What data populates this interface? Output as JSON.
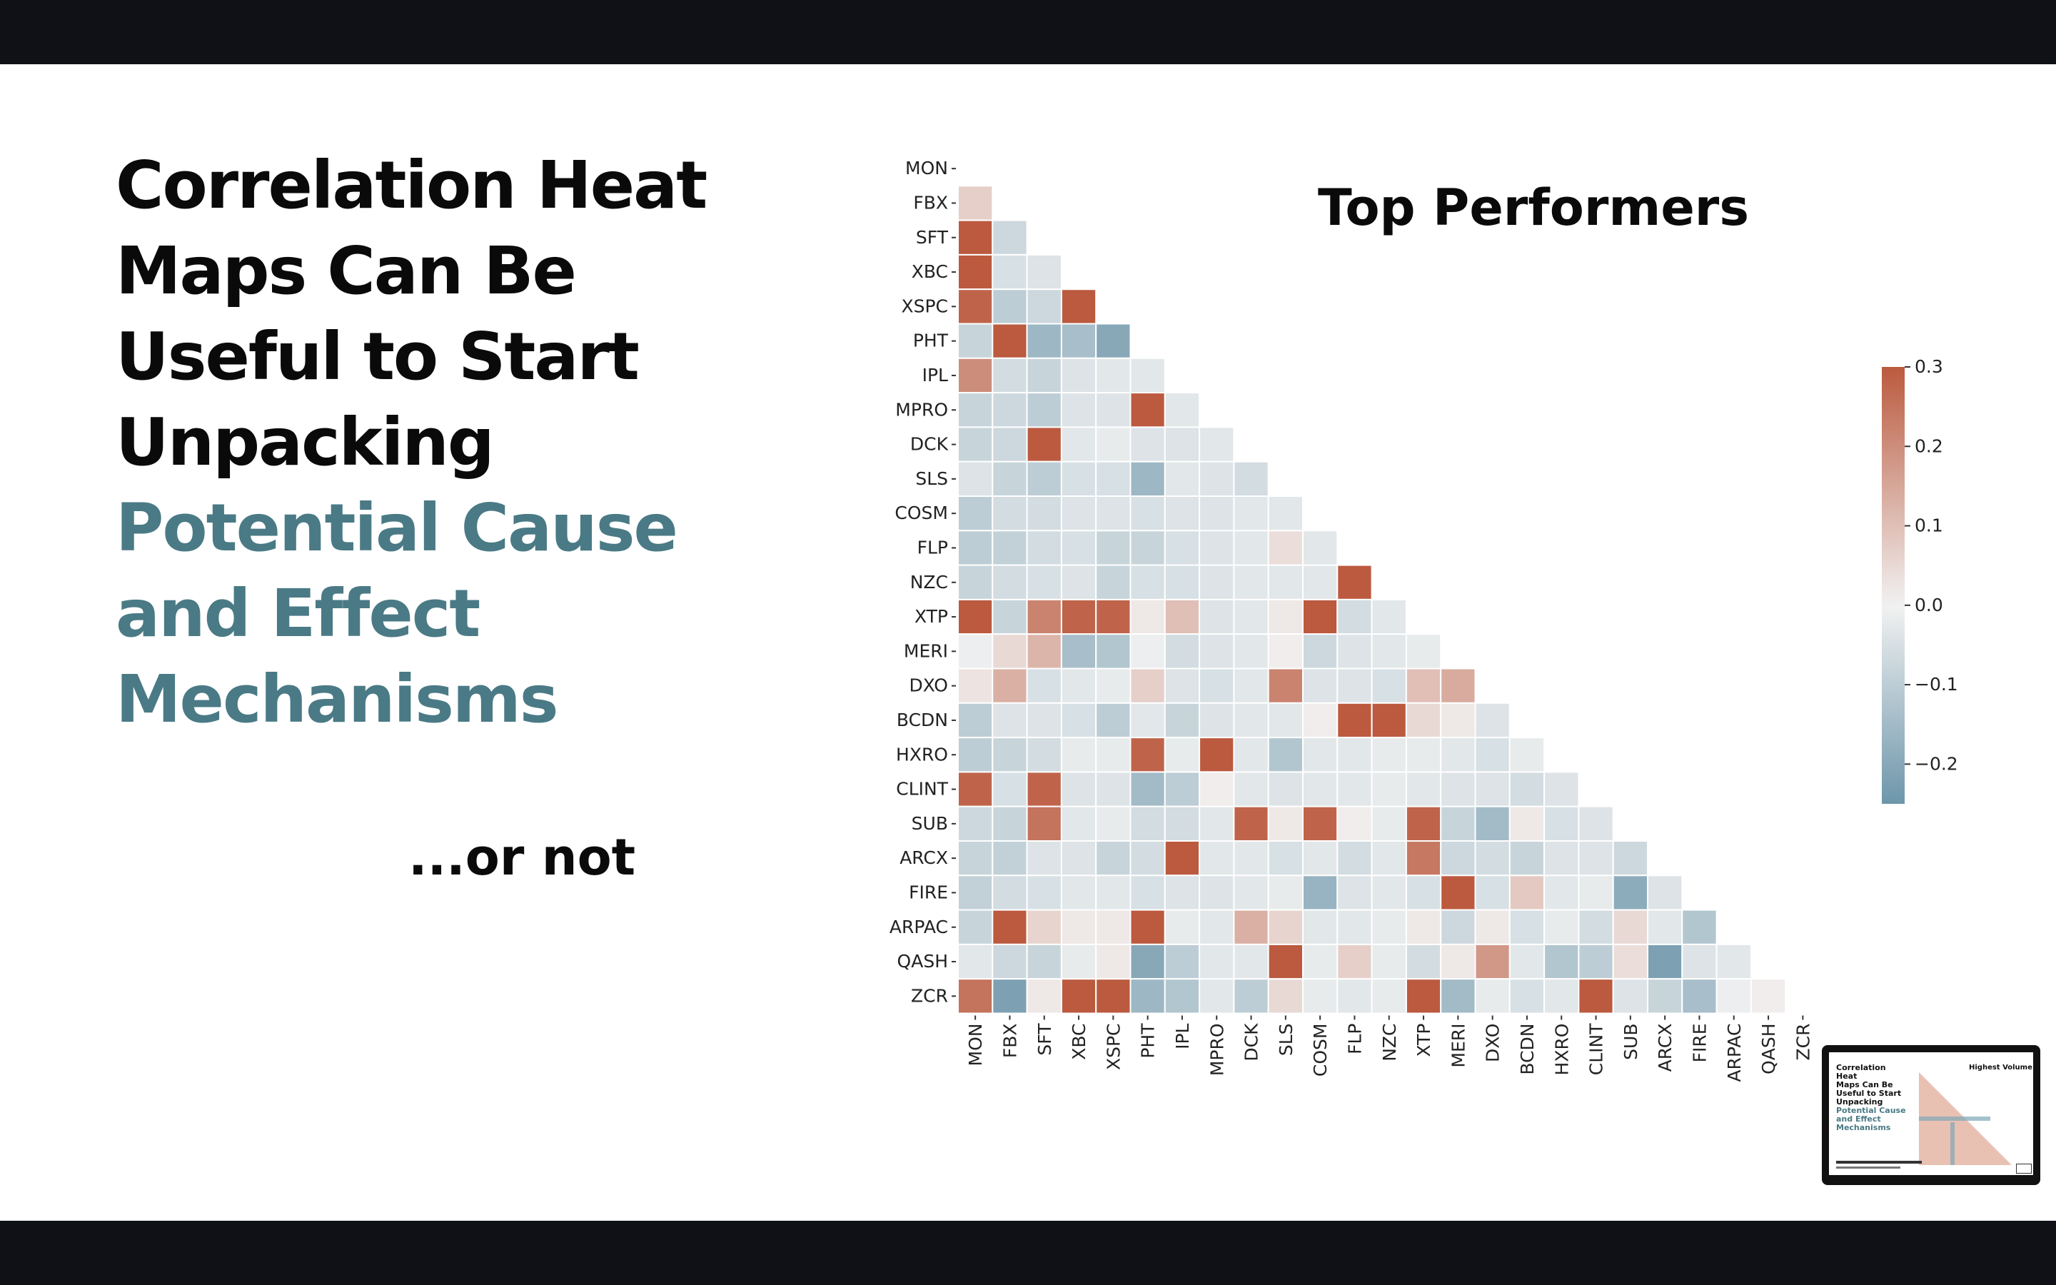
{
  "slide": {
    "heading_lines": [
      "Correlation Heat",
      "Maps Can Be",
      "Useful to Start",
      "Unpacking"
    ],
    "heading_accent_lines": [
      "Potential Cause",
      "and Effect",
      "Mechanisms"
    ],
    "subtext": "...or not",
    "colors": {
      "accent": "#4a7a85",
      "text": "#0a0a0a",
      "frame": "#0f1116"
    }
  },
  "chart_data": {
    "type": "heatmap",
    "title": "Top Performers",
    "labels": [
      "MON",
      "FBX",
      "SFT",
      "XBC",
      "XSPC",
      "PHT",
      "IPL",
      "MPRO",
      "DCK",
      "SLS",
      "COSM",
      "FLP",
      "NZC",
      "XTP",
      "MERI",
      "DXO",
      "BCDN",
      "HXRO",
      "CLINT",
      "SUB",
      "ARCX",
      "FIRE",
      "ARPAC",
      "QASH",
      "ZCR"
    ],
    "mask": "upper triangle incl. diagonal",
    "colorbar": {
      "min": -0.25,
      "max": 0.3,
      "ticks": [
        0.3,
        0.2,
        0.1,
        0.0,
        -0.1,
        -0.2
      ],
      "tick_labels": [
        "0.3",
        "0.2",
        "0.1",
        "0.0",
        "−0.1",
        "−0.2"
      ]
    },
    "colormap": {
      "low": "#6d96aa",
      "mid": "#f2f2f2",
      "high": "#bb5a3f"
    },
    "rows": [
      [],
      [
        0.07
      ],
      [
        0.3,
        -0.07
      ],
      [
        0.3,
        -0.05,
        -0.04
      ],
      [
        0.28,
        -0.1,
        -0.07,
        0.3
      ],
      [
        -0.08,
        0.3,
        -0.16,
        -0.14,
        -0.2
      ],
      [
        0.2,
        -0.06,
        -0.08,
        -0.04,
        -0.03,
        -0.03
      ],
      [
        -0.08,
        -0.07,
        -0.1,
        -0.04,
        -0.04,
        0.3,
        -0.03
      ],
      [
        -0.08,
        -0.07,
        0.3,
        -0.03,
        -0.02,
        -0.04,
        -0.04,
        -0.03
      ],
      [
        -0.04,
        -0.08,
        -0.1,
        -0.05,
        -0.05,
        -0.16,
        -0.03,
        -0.04,
        -0.06
      ],
      [
        -0.1,
        -0.06,
        -0.06,
        -0.04,
        -0.04,
        -0.05,
        -0.04,
        -0.04,
        -0.03,
        -0.03
      ],
      [
        -0.1,
        -0.09,
        -0.06,
        -0.05,
        -0.08,
        -0.08,
        -0.05,
        -0.04,
        -0.03,
        0.04,
        -0.03
      ],
      [
        -0.08,
        -0.06,
        -0.05,
        -0.04,
        -0.08,
        -0.05,
        -0.05,
        -0.04,
        -0.03,
        -0.03,
        -0.03,
        0.3
      ],
      [
        0.3,
        -0.08,
        0.22,
        0.28,
        0.28,
        0.02,
        0.1,
        -0.04,
        -0.03,
        0.02,
        0.3,
        -0.06,
        -0.03
      ],
      [
        -0.01,
        0.05,
        0.12,
        -0.14,
        -0.12,
        -0.01,
        -0.06,
        -0.04,
        -0.03,
        0.01,
        -0.07,
        -0.04,
        -0.03,
        -0.02
      ],
      [
        0.03,
        0.13,
        -0.05,
        -0.03,
        -0.02,
        0.07,
        -0.04,
        -0.05,
        -0.03,
        0.22,
        -0.04,
        -0.04,
        -0.05,
        0.1,
        0.14
      ],
      [
        -0.1,
        -0.04,
        -0.04,
        -0.05,
        -0.1,
        -0.03,
        -0.08,
        -0.04,
        -0.03,
        -0.03,
        0.01,
        0.3,
        0.3,
        0.05,
        0.02,
        -0.04
      ],
      [
        -0.1,
        -0.08,
        -0.06,
        -0.02,
        -0.02,
        0.28,
        -0.02,
        0.3,
        -0.03,
        -0.12,
        -0.03,
        -0.03,
        -0.02,
        -0.02,
        -0.03,
        -0.05,
        -0.02
      ],
      [
        0.28,
        -0.05,
        0.28,
        -0.04,
        -0.04,
        -0.15,
        -0.1,
        0.01,
        -0.03,
        -0.04,
        -0.03,
        -0.03,
        -0.02,
        -0.03,
        -0.04,
        -0.04,
        -0.06,
        -0.04
      ],
      [
        -0.07,
        -0.08,
        0.25,
        -0.03,
        -0.02,
        -0.06,
        -0.06,
        -0.03,
        0.28,
        0.02,
        0.28,
        0.01,
        -0.02,
        0.28,
        -0.08,
        -0.15,
        0.02,
        -0.05,
        -0.04
      ],
      [
        -0.08,
        -0.09,
        -0.04,
        -0.04,
        -0.08,
        -0.06,
        0.3,
        -0.03,
        -0.03,
        -0.05,
        -0.03,
        -0.06,
        -0.03,
        0.24,
        -0.07,
        -0.06,
        -0.08,
        -0.04,
        -0.04,
        -0.07
      ],
      [
        -0.09,
        -0.06,
        -0.05,
        -0.03,
        -0.03,
        -0.05,
        -0.04,
        -0.04,
        -0.03,
        -0.02,
        -0.17,
        -0.04,
        -0.03,
        -0.05,
        0.3,
        -0.05,
        0.08,
        -0.03,
        -0.02,
        -0.19,
        -0.04
      ],
      [
        -0.08,
        0.3,
        0.06,
        0.02,
        0.02,
        0.3,
        -0.02,
        -0.03,
        0.13,
        0.06,
        -0.03,
        -0.03,
        -0.02,
        0.02,
        -0.07,
        0.02,
        -0.05,
        -0.02,
        -0.06,
        0.05,
        -0.03,
        -0.12
      ],
      [
        -0.03,
        -0.07,
        -0.08,
        -0.02,
        0.02,
        -0.2,
        -0.1,
        -0.03,
        -0.03,
        0.3,
        -0.02,
        0.07,
        -0.02,
        -0.06,
        0.02,
        0.18,
        -0.03,
        -0.12,
        -0.1,
        0.04,
        -0.22,
        -0.04,
        -0.03
      ],
      [
        0.25,
        -0.22,
        0.02,
        0.3,
        0.3,
        -0.16,
        -0.12,
        -0.03,
        -0.1,
        0.05,
        -0.02,
        -0.03,
        -0.02,
        0.3,
        -0.15,
        -0.02,
        -0.05,
        -0.03,
        0.3,
        -0.04,
        -0.08,
        -0.14,
        -0.01,
        0.01
      ]
    ]
  },
  "thumbnail": {
    "heading_lines": [
      "Correlation Heat",
      "Maps Can Be",
      "Useful to Start",
      "Unpacking"
    ],
    "accent_lines": [
      "Potential Cause",
      "and Effect",
      "Mechanisms"
    ],
    "chart_title": "Highest Volume"
  }
}
